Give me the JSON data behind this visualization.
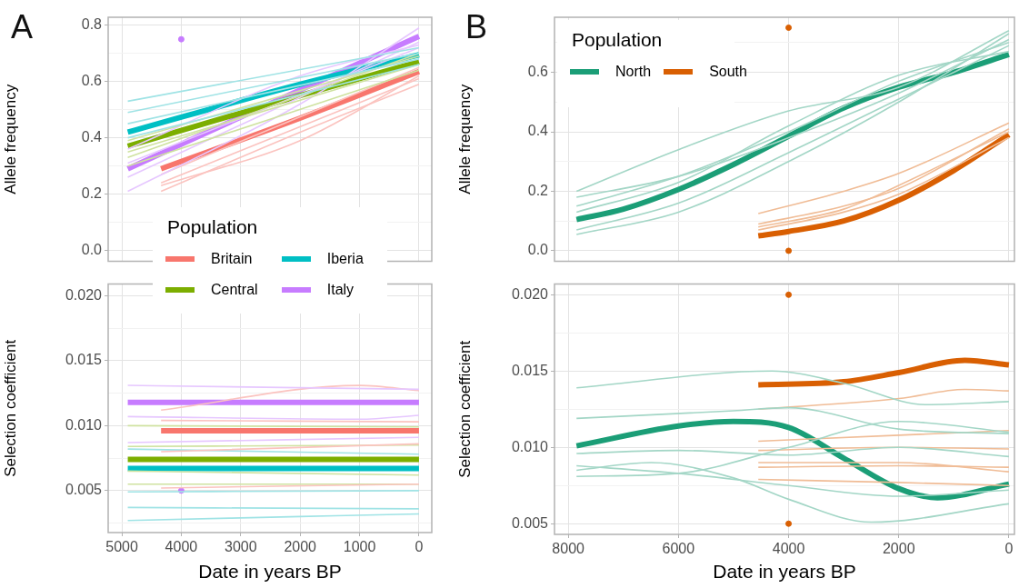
{
  "chart_data": [
    {
      "type": "line",
      "title": "A",
      "ylabel": "Allele frequency",
      "xlim": [
        5230,
        -215
      ],
      "ylim": [
        -0.038,
        0.828
      ],
      "xticks": [
        5000,
        4000,
        3000,
        2000,
        1000,
        0
      ],
      "yticks": [
        {
          "value": 0,
          "label": "0.0"
        },
        {
          "value": 0.1,
          "label": null
        },
        0.2,
        {
          "value": 0.3,
          "label": null
        },
        0.4,
        {
          "value": 0.5,
          "label": null
        },
        0.6,
        {
          "value": 0.7,
          "label": null
        },
        0.8
      ],
      "grid": true,
      "tick_labels": "y",
      "legend": "bottom",
      "legend_title": "Population",
      "series": [
        {
          "color": "#9fe3e5",
          "x": [
            4900,
            0
          ],
          "values": [
            0.53,
            0.72
          ]
        },
        {
          "color": "#9fe3e5",
          "x": [
            4900,
            0
          ],
          "values": [
            0.49,
            0.7
          ]
        },
        {
          "color": "#9fe3e5",
          "x": [
            4900,
            0
          ],
          "values": [
            0.45,
            0.68
          ]
        },
        {
          "color": "#9fe3e5",
          "x": [
            4900,
            0
          ],
          "values": [
            0.4,
            0.66
          ]
        },
        {
          "color": "#cfe2a0",
          "x": [
            4900,
            0
          ],
          "values": [
            0.35,
            0.66
          ]
        },
        {
          "color": "#cfe2a0",
          "x": [
            4900,
            0
          ],
          "values": [
            0.3,
            0.64
          ]
        },
        {
          "color": "#cfe2a0",
          "x": [
            4900,
            0
          ],
          "values": [
            0.33,
            0.7
          ]
        },
        {
          "color": "#cfe2a0",
          "x": [
            4900,
            0
          ],
          "values": [
            0.39,
            0.69
          ]
        },
        {
          "color": "#e6c7ff",
          "x": [
            4900,
            2000,
            0
          ],
          "values": [
            0.21,
            0.52,
            0.79
          ]
        },
        {
          "color": "#e6c7ff",
          "x": [
            4900,
            0
          ],
          "values": [
            0.26,
            0.74
          ]
        },
        {
          "color": "#e6c7ff",
          "x": [
            4900,
            0
          ],
          "values": [
            0.31,
            0.72
          ]
        },
        {
          "color": "#e6c7ff",
          "x": [
            4900,
            2000,
            0
          ],
          "values": [
            0.36,
            0.62,
            0.73
          ]
        },
        {
          "color": "#fbc3bf",
          "x": [
            4340,
            2000,
            0
          ],
          "values": [
            0.21,
            0.42,
            0.59
          ]
        },
        {
          "color": "#fbc3bf",
          "x": [
            4340,
            0
          ],
          "values": [
            0.24,
            0.61
          ]
        },
        {
          "color": "#fbc3bf",
          "x": [
            4340,
            0
          ],
          "values": [
            0.27,
            0.65
          ]
        },
        {
          "color": "#fbc3bf",
          "x": [
            4340,
            2000,
            0
          ],
          "values": [
            0.23,
            0.39,
            0.62
          ]
        },
        {
          "name": "Britain",
          "color": "#f8766d",
          "x": [
            4340,
            2000,
            0
          ],
          "values": [
            0.29,
            0.47,
            0.635
          ]
        },
        {
          "name": "Iberia",
          "color": "#00bfc4",
          "x": [
            4900,
            2000,
            0
          ],
          "values": [
            0.42,
            0.59,
            0.695
          ]
        },
        {
          "name": "Central",
          "color": "#7cae00",
          "x": [
            4900,
            2000,
            0
          ],
          "values": [
            0.37,
            0.55,
            0.67
          ]
        },
        {
          "name": "Italy",
          "color": "#c77cff",
          "x": [
            4900,
            2000,
            0
          ],
          "values": [
            0.29,
            0.57,
            0.76
          ]
        },
        {
          "type": "scatter",
          "marker": "circle",
          "color": "#c77cff",
          "x": [
            4000
          ],
          "values": [
            0.75
          ]
        }
      ]
    },
    {
      "type": "line",
      "ylabel": "Selection coefficient",
      "xlabel": "Date in years BP",
      "xlim": [
        5230,
        -215
      ],
      "ylim": [
        0.00177,
        0.0209
      ],
      "xticks": [
        5000,
        4000,
        3000,
        2000,
        1000,
        0
      ],
      "yticks": [
        {
          "value": 0.0025,
          "label": null
        },
        {
          "value": 0.005,
          "label": "0.005"
        },
        {
          "value": 0.0075,
          "label": null
        },
        {
          "value": 0.01,
          "label": "0.010"
        },
        {
          "value": 0.0125,
          "label": null
        },
        {
          "value": 0.015,
          "label": "0.015"
        },
        {
          "value": 0.0175,
          "label": null
        },
        {
          "value": 0.02,
          "label": "0.020"
        }
      ],
      "grid": true,
      "series": [
        {
          "color": "#e6c7ff",
          "x": [
            4900,
            0
          ],
          "values": [
            0.0131,
            0.0128
          ]
        },
        {
          "color": "#e6c7ff",
          "x": [
            4900,
            1000,
            0
          ],
          "values": [
            0.0107,
            0.0105,
            0.0108
          ]
        },
        {
          "color": "#e6c7ff",
          "x": [
            4900,
            0
          ],
          "values": [
            0.0087,
            0.0091
          ]
        },
        {
          "color": "#fbc3bf",
          "x": [
            4340,
            1000,
            0
          ],
          "values": [
            0.0112,
            0.0131,
            0.0127
          ]
        },
        {
          "color": "#fbc3bf",
          "x": [
            4340,
            0
          ],
          "values": [
            0.0104,
            0.0103
          ]
        },
        {
          "color": "#fbc3bf",
          "x": [
            4340,
            0
          ],
          "values": [
            0.0052,
            0.0055
          ]
        },
        {
          "color": "#fbc3bf",
          "x": [
            4340,
            0
          ],
          "values": [
            0.008,
            0.0086
          ]
        },
        {
          "color": "#cfe2a0",
          "x": [
            4900,
            0
          ],
          "values": [
            0.01,
            0.0099
          ]
        },
        {
          "color": "#cfe2a0",
          "x": [
            4900,
            0
          ],
          "values": [
            0.0084,
            0.0085
          ]
        },
        {
          "color": "#cfe2a0",
          "x": [
            4900,
            0
          ],
          "values": [
            0.0065,
            0.0062
          ]
        },
        {
          "color": "#cfe2a0",
          "x": [
            4900,
            0
          ],
          "values": [
            0.0055,
            0.0055
          ]
        },
        {
          "color": "#9fe3e5",
          "x": [
            4900,
            0
          ],
          "values": [
            0.0037,
            0.0036
          ]
        },
        {
          "color": "#9fe3e5",
          "x": [
            4900,
            2000,
            0
          ],
          "values": [
            0.0027,
            0.003,
            0.0032
          ]
        },
        {
          "color": "#9fe3e5",
          "x": [
            4900,
            0
          ],
          "values": [
            0.0049,
            0.005
          ]
        },
        {
          "color": "#9fe3e5",
          "x": [
            4900,
            0
          ],
          "values": [
            0.0082,
            0.0078
          ]
        },
        {
          "color": "#c77cff",
          "x": [
            4900,
            0
          ],
          "values": [
            0.0118,
            0.0118
          ]
        },
        {
          "color": "#f8766d",
          "x": [
            4340,
            0
          ],
          "values": [
            0.0096,
            0.0096
          ]
        },
        {
          "color": "#7cae00",
          "x": [
            4900,
            0
          ],
          "values": [
            0.0074,
            0.0074
          ]
        },
        {
          "color": "#00bfc4",
          "x": [
            4900,
            0
          ],
          "values": [
            0.0067,
            0.0067
          ]
        },
        {
          "type": "scatter",
          "marker": "circle",
          "color": "#c77cff",
          "x": [
            4000
          ],
          "values": [
            0.005
          ]
        }
      ]
    },
    {
      "type": "line",
      "title": "B",
      "ylabel": "Allele frequency",
      "xlim": [
        8250,
        -100
      ],
      "ylim": [
        -0.035,
        0.785
      ],
      "xticks": [
        8000,
        6000,
        4000,
        2000,
        0
      ],
      "yticks": [
        {
          "value": 0,
          "label": "0.0"
        },
        {
          "value": 0.1,
          "label": null
        },
        0.2,
        {
          "value": 0.3,
          "label": null
        },
        0.4,
        {
          "value": 0.5,
          "label": null
        },
        0.6,
        {
          "value": 0.7,
          "label": null
        }
      ],
      "grid": true,
      "tick_labels": "y",
      "legend": "top left",
      "legend_title": "Population",
      "series": [
        {
          "color": "#a3d6c6",
          "x": [
            7850,
            6000,
            4000,
            2000,
            0
          ],
          "values": [
            0.2,
            0.34,
            0.47,
            0.55,
            0.74
          ]
        },
        {
          "color": "#a3d6c6",
          "x": [
            7850,
            6000,
            4000,
            2000,
            0
          ],
          "values": [
            0.18,
            0.25,
            0.38,
            0.53,
            0.71
          ]
        },
        {
          "color": "#a3d6c6",
          "x": [
            7850,
            6000,
            4000,
            2000,
            0
          ],
          "values": [
            0.055,
            0.13,
            0.3,
            0.5,
            0.73
          ]
        },
        {
          "color": "#a3d6c6",
          "x": [
            7850,
            6000,
            4000,
            2000,
            0
          ],
          "values": [
            0.07,
            0.16,
            0.33,
            0.51,
            0.69
          ]
        },
        {
          "color": "#a3d6c6",
          "x": [
            7850,
            6000,
            4000,
            2000,
            0
          ],
          "values": [
            0.13,
            0.23,
            0.42,
            0.59,
            0.67
          ]
        },
        {
          "color": "#a3d6c6",
          "x": [
            7850,
            6000,
            4000,
            2000,
            0
          ],
          "values": [
            0.15,
            0.25,
            0.4,
            0.57,
            0.7
          ]
        },
        {
          "color": "#f0bc96",
          "x": [
            4550,
            3000,
            2000,
            0
          ],
          "values": [
            0.125,
            0.2,
            0.26,
            0.43
          ]
        },
        {
          "color": "#f0bc96",
          "x": [
            4550,
            3000,
            2000,
            0
          ],
          "values": [
            0.09,
            0.15,
            0.21,
            0.41
          ]
        },
        {
          "color": "#f0bc96",
          "x": [
            4550,
            3000,
            2000,
            0
          ],
          "values": [
            0.07,
            0.13,
            0.19,
            0.38
          ]
        },
        {
          "color": "#f0bc96",
          "x": [
            4550,
            3000,
            2000,
            0
          ],
          "values": [
            0.08,
            0.14,
            0.22,
            0.4
          ]
        },
        {
          "name": "North",
          "color": "#1b9e77",
          "x": [
            7850,
            7000,
            6000,
            5000,
            4000,
            3000,
            2000,
            1000,
            0
          ],
          "values": [
            0.105,
            0.14,
            0.206,
            0.29,
            0.385,
            0.48,
            0.55,
            0.6,
            0.66
          ]
        },
        {
          "name": "South",
          "color": "#d95f02",
          "x": [
            4550,
            4000,
            3000,
            2000,
            1000,
            0
          ],
          "values": [
            0.05,
            0.065,
            0.1,
            0.17,
            0.27,
            0.39
          ]
        },
        {
          "type": "scatter",
          "marker": "circle",
          "color": "#d95f02",
          "x": [
            4000,
            4000
          ],
          "values": [
            0.75,
            0
          ]
        }
      ]
    },
    {
      "type": "line",
      "ylabel": "Selection coefficient",
      "xlabel": "Date in years BP",
      "xlim": [
        8250,
        -100
      ],
      "ylim": [
        0.0043,
        0.0207
      ],
      "xticks": [
        8000,
        6000,
        4000,
        2000,
        0
      ],
      "yticks": [
        {
          "value": 0.005,
          "label": "0.005"
        },
        {
          "value": 0.0075,
          "label": null
        },
        {
          "value": 0.01,
          "label": "0.010"
        },
        {
          "value": 0.0125,
          "label": null
        },
        {
          "value": 0.015,
          "label": "0.015"
        },
        {
          "value": 0.0175,
          "label": null
        },
        {
          "value": 0.02,
          "label": "0.020"
        }
      ],
      "grid": true,
      "series": [
        {
          "color": "#a3d6c6",
          "x": [
            7850,
            4300,
            3000,
            1500,
            0
          ],
          "values": [
            0.0139,
            0.015,
            0.0142,
            0.0128,
            0.013
          ]
        },
        {
          "color": "#a3d6c6",
          "x": [
            7850,
            5000,
            4000,
            2000,
            0
          ],
          "values": [
            0.0119,
            0.0124,
            0.0126,
            0.0112,
            0.0109
          ]
        },
        {
          "color": "#a3d6c6",
          "x": [
            7850,
            6000,
            4000,
            2000,
            0
          ],
          "values": [
            0.0096,
            0.0098,
            0.0095,
            0.01,
            0.0094
          ]
        },
        {
          "color": "#a3d6c6",
          "x": [
            7850,
            6000,
            4000,
            2000,
            0
          ],
          "values": [
            0.0088,
            0.0083,
            0.0075,
            0.0068,
            0.0072
          ]
        },
        {
          "color": "#a3d6c6",
          "x": [
            7850,
            6500,
            5000,
            4000,
            2500,
            0
          ],
          "values": [
            0.0085,
            0.009,
            0.008,
            0.0066,
            0.0051,
            0.0063
          ]
        },
        {
          "color": "#a3d6c6",
          "x": [
            7850,
            6000,
            4000,
            2000,
            0
          ],
          "values": [
            0.0081,
            0.0083,
            0.01,
            0.0117,
            0.011
          ]
        },
        {
          "color": "#f0bc96",
          "x": [
            4550,
            2000,
            800,
            0
          ],
          "values": [
            0.0125,
            0.0132,
            0.0138,
            0.0137
          ]
        },
        {
          "color": "#f0bc96",
          "x": [
            4550,
            2000,
            0
          ],
          "values": [
            0.0104,
            0.0108,
            0.0111
          ]
        },
        {
          "color": "#f0bc96",
          "x": [
            4550,
            2000,
            0
          ],
          "values": [
            0.0098,
            0.01,
            0.0099
          ]
        },
        {
          "color": "#f0bc96",
          "x": [
            4550,
            2000,
            0
          ],
          "values": [
            0.009,
            0.009,
            0.0084
          ]
        },
        {
          "color": "#f0bc96",
          "x": [
            4550,
            2000,
            0
          ],
          "values": [
            0.0087,
            0.0088,
            0.0087
          ]
        },
        {
          "color": "#f0bc96",
          "x": [
            4550,
            2000,
            0
          ],
          "values": [
            0.0079,
            0.0077,
            0.0075
          ]
        },
        {
          "color": "#1b9e77",
          "x": [
            7850,
            6000,
            5000,
            4000,
            3000,
            2000,
            1300,
            0
          ],
          "values": [
            0.0101,
            0.0114,
            0.0117,
            0.0113,
            0.0093,
            0.0073,
            0.0067,
            0.0076
          ]
        },
        {
          "color": "#d95f02",
          "x": [
            4550,
            3000,
            2000,
            800,
            0
          ],
          "values": [
            0.0141,
            0.0143,
            0.0149,
            0.0157,
            0.0154
          ]
        },
        {
          "type": "scatter",
          "marker": "circle",
          "color": "#d95f02",
          "x": [
            4000,
            4000
          ],
          "values": [
            0.02,
            0.005
          ]
        }
      ]
    }
  ]
}
